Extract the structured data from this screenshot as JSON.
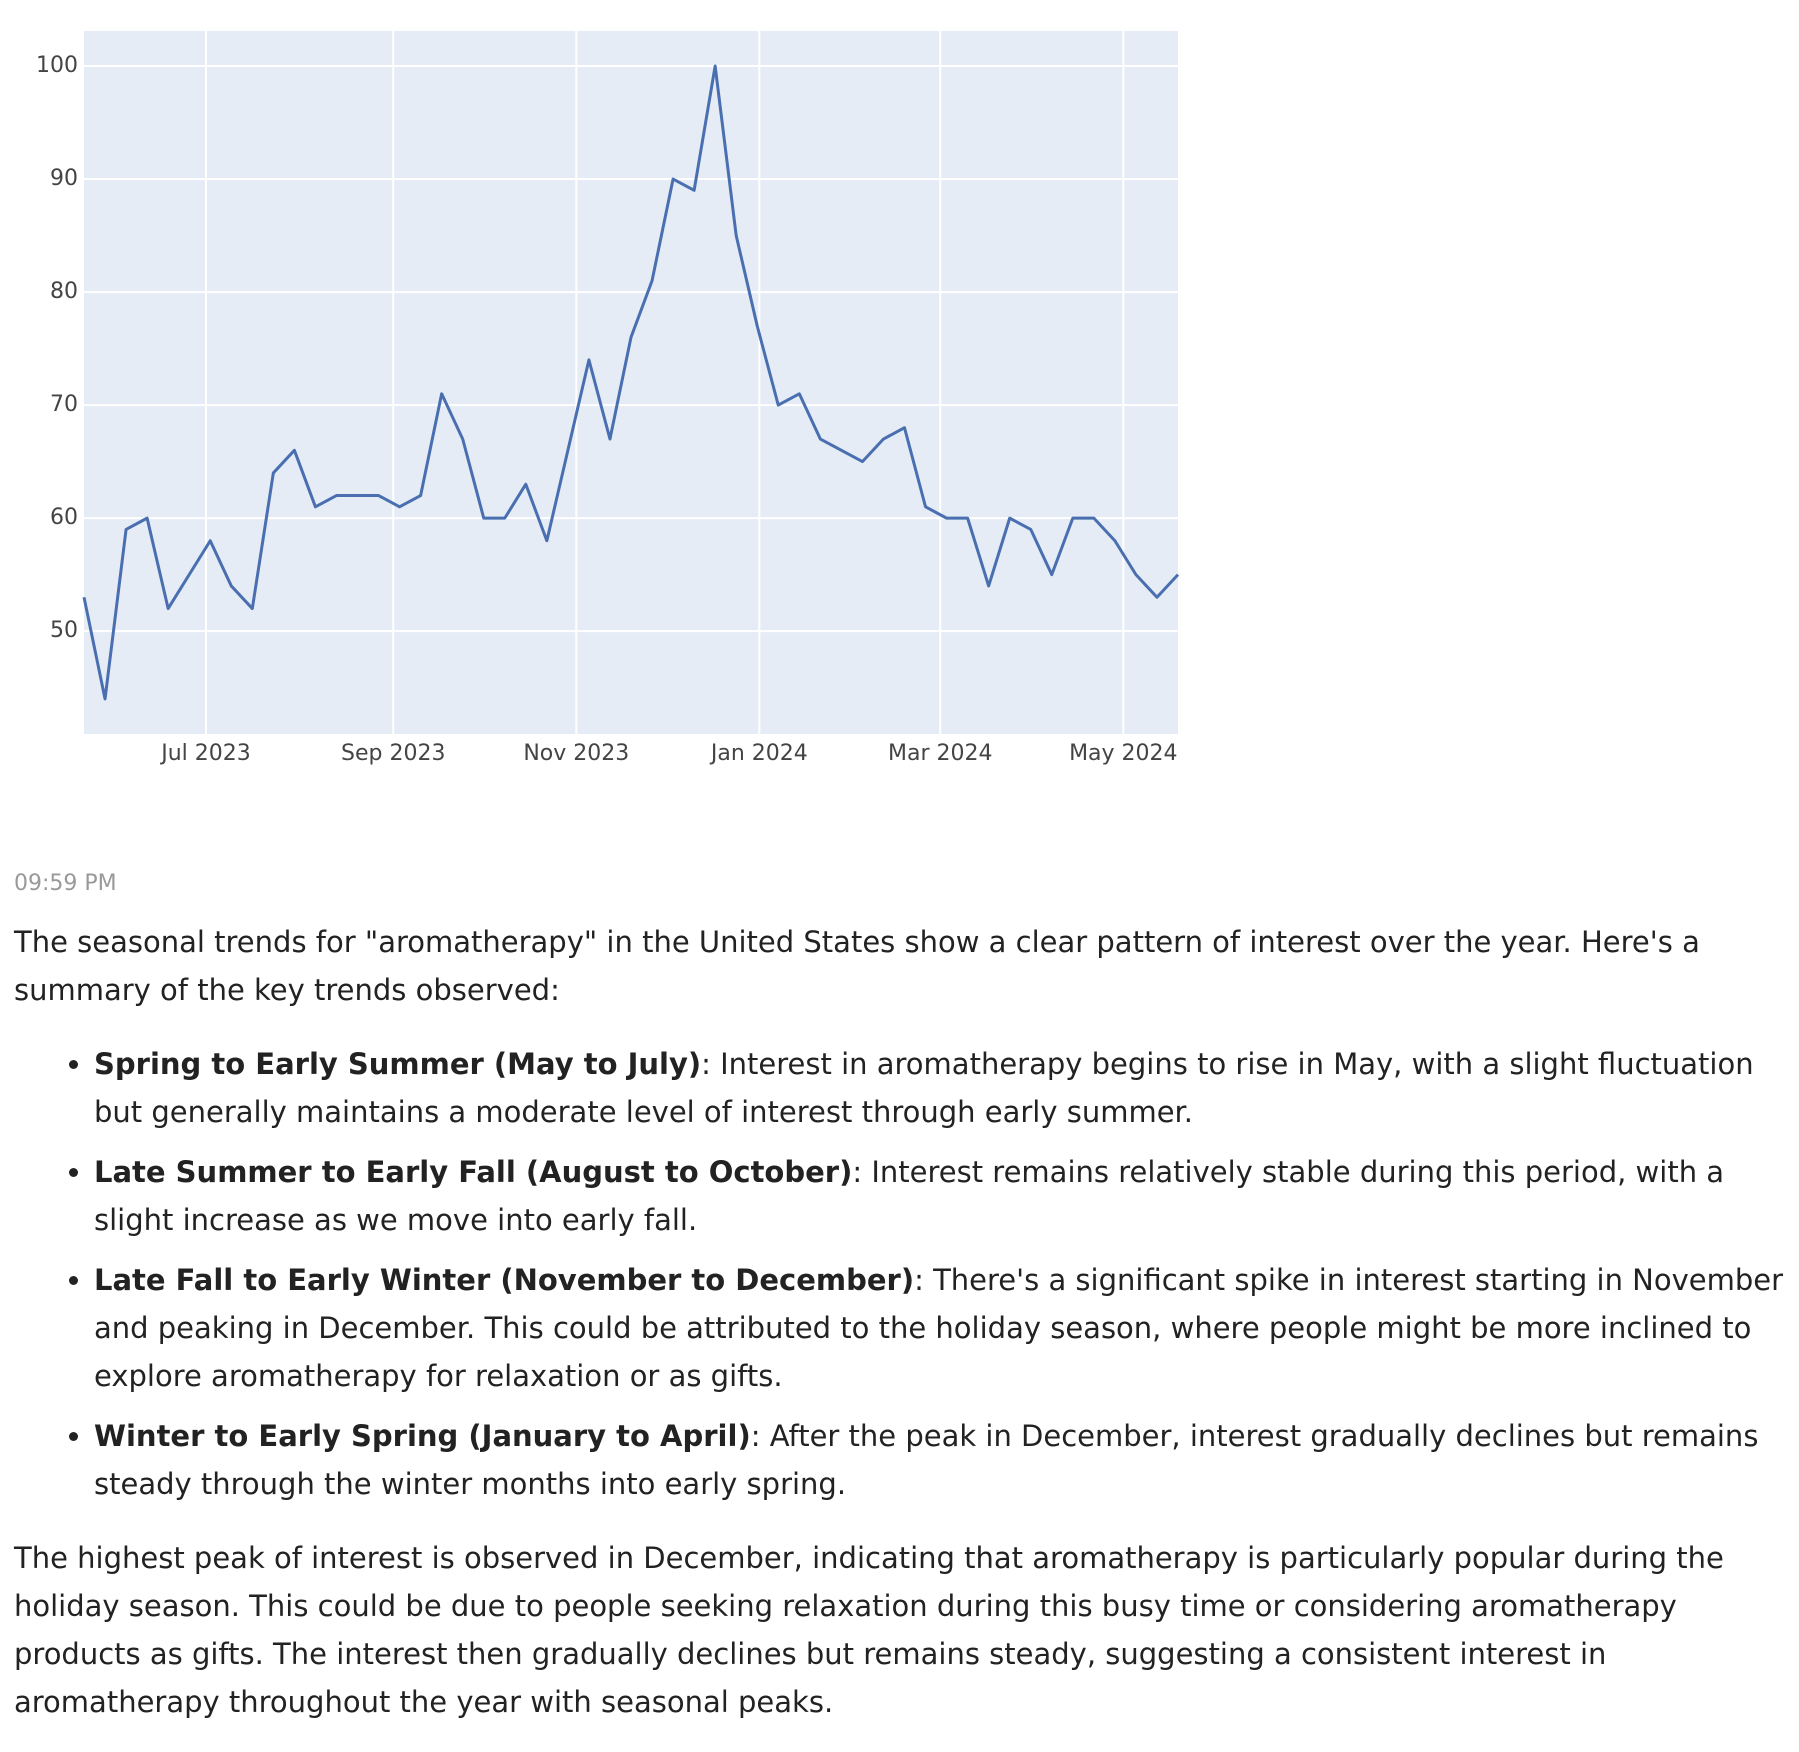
{
  "chart_data": {
    "type": "line",
    "series": [
      {
        "color": "#4a6fb0",
        "values": [
          53,
          44,
          59,
          60,
          52,
          55,
          58,
          54,
          52,
          64,
          66,
          61,
          62,
          62,
          62,
          61,
          62,
          71,
          67,
          60,
          60,
          63,
          58,
          66,
          74,
          67,
          76,
          81,
          90,
          89,
          100,
          85,
          77,
          70,
          71,
          67,
          66,
          65,
          67,
          68,
          61,
          60,
          60,
          54,
          60,
          59,
          55,
          60,
          60,
          58,
          55,
          53,
          55
        ]
      }
    ],
    "xlim": [
      0,
      52
    ],
    "xticks": [
      {
        "value": 5.8,
        "label": "Jul 2023"
      },
      {
        "value": 14.7,
        "label": "Sep 2023"
      },
      {
        "value": 23.4,
        "label": "Nov 2023"
      },
      {
        "value": 32.1,
        "label": "Jan 2024"
      },
      {
        "value": 40.7,
        "label": "Mar 2024"
      },
      {
        "value": 49.4,
        "label": "May 2024"
      }
    ],
    "ylim": [
      40.9,
      103.1
    ],
    "yticks": [
      50,
      60,
      70,
      80,
      90,
      100
    ],
    "grid": true,
    "background": "#e5ecf6"
  },
  "message": {
    "timestamp": "09:59 PM",
    "intro": "The seasonal trends for \"aromatherapy\" in the United States show a clear pattern of interest over the year. Here's a summary of the key trends observed:",
    "bullets": [
      {
        "title": "Spring to Early Summer (May to July)",
        "text": ": Interest in aromatherapy begins to rise in May, with a slight fluctuation but generally maintains a moderate level of interest through early summer."
      },
      {
        "title": "Late Summer to Early Fall (August to October)",
        "text": ": Interest remains relatively stable during this period, with a slight increase as we move into early fall."
      },
      {
        "title": "Late Fall to Early Winter (November to December)",
        "text": ": There's a significant spike in interest starting in November and peaking in December. This could be attributed to the holiday season, where people might be more inclined to explore aromatherapy for relaxation or as gifts."
      },
      {
        "title": "Winter to Early Spring (January to April)",
        "text": ": After the peak in December, interest gradually declines but remains steady through the winter months into early spring."
      }
    ],
    "conclusion": "The highest peak of interest is observed in December, indicating that aromatherapy is particularly popular during the holiday season. This could be due to people seeking relaxation during this busy time or considering aromatherapy products as gifts. The interest then gradually declines but remains steady, suggesting a consistent interest in aromatherapy throughout the year with seasonal peaks."
  }
}
